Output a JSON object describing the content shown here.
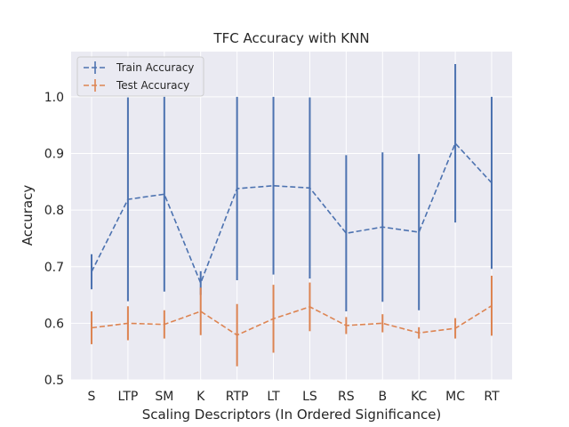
{
  "chart_data": {
    "type": "line",
    "title": "TFC Accuracy with KNN",
    "xlabel": "Scaling Descriptors (In Ordered Significance)",
    "ylabel": "Accuracy",
    "categories": [
      "S",
      "LTP",
      "SM",
      "K",
      "RTP",
      "LT",
      "LS",
      "RS",
      "B",
      "KC",
      "MC",
      "RT"
    ],
    "ylim": [
      0.5,
      1.08
    ],
    "yticks": [
      0.5,
      0.6,
      0.7,
      0.8,
      0.9,
      1.0
    ],
    "ytick_labels": [
      "0.5",
      "0.6",
      "0.7",
      "0.8",
      "0.9",
      "1.0"
    ],
    "grid": true,
    "legend_position": "top-left",
    "series": [
      {
        "name": "Train Accuracy",
        "color": "#4c72b0",
        "values": [
          0.691,
          0.819,
          0.828,
          0.671,
          0.838,
          0.843,
          0.839,
          0.759,
          0.77,
          0.761,
          0.918,
          0.848
        ],
        "errors": [
          0.031,
          0.18,
          0.172,
          0.021,
          0.162,
          0.157,
          0.16,
          0.138,
          0.132,
          0.138,
          0.14,
          0.152
        ]
      },
      {
        "name": "Test Accuracy",
        "color": "#dd8452",
        "values": [
          0.592,
          0.6,
          0.598,
          0.621,
          0.579,
          0.608,
          0.629,
          0.596,
          0.6,
          0.583,
          0.591,
          0.631
        ],
        "errors": [
          0.029,
          0.03,
          0.025,
          0.042,
          0.055,
          0.06,
          0.043,
          0.015,
          0.016,
          0.01,
          0.018,
          0.053
        ]
      }
    ]
  }
}
